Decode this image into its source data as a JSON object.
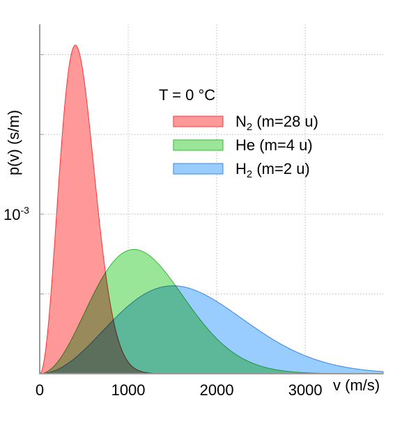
{
  "chart_data": {
    "type": "area",
    "title": "T = 0 °C",
    "temperature_C": 0,
    "xlabel": "v (m/s)",
    "ylabel": "p(v) (s/m)",
    "xlim": [
      0,
      3880
    ],
    "ylim": [
      0,
      0.00219
    ],
    "x_ticks": [
      {
        "value": 0,
        "label": "0"
      },
      {
        "value": 1000,
        "label": "1000"
      },
      {
        "value": 2000,
        "label": "2000"
      },
      {
        "value": 3000,
        "label": "3000"
      }
    ],
    "y_ticks": [
      {
        "value": 0.0005,
        "label": ""
      },
      {
        "value": 0.001,
        "label_base": "10",
        "label_exp": "-3"
      },
      {
        "value": 0.0015,
        "label": ""
      },
      {
        "value": 0.002,
        "label": ""
      }
    ],
    "grid": true,
    "legend_position": "top-right",
    "series": [
      {
        "name_main": "N",
        "name_sub": "2",
        "name_rest": " (m=28 u)",
        "mass_u": 28,
        "peak_speed": 403,
        "peak_value": 0.00206,
        "fill": "#ff9999",
        "stroke": "#ff3333"
      },
      {
        "name_main": "He",
        "name_sub": "",
        "name_rest": " (m=4 u)",
        "mass_u": 4,
        "peak_speed": 1065,
        "peak_value": 0.000779,
        "fill": "#99e699",
        "stroke": "#33bb33"
      },
      {
        "name_main": "H",
        "name_sub": "2",
        "name_rest": " (m=2 u)",
        "mass_u": 2,
        "peak_speed": 1506,
        "peak_value": 0.000551,
        "fill": "#99ccff",
        "stroke": "#3388ee"
      }
    ]
  }
}
